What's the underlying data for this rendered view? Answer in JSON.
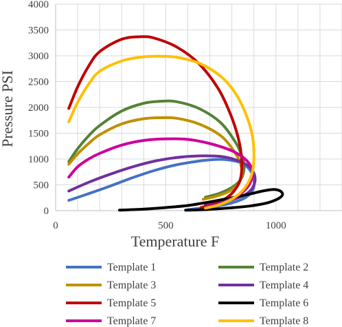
{
  "chart_data": {
    "type": "line",
    "title": "",
    "xlabel": "Temperature F",
    "ylabel": "Pressure PSI",
    "xlim": [
      0,
      1300
    ],
    "ylim": [
      0,
      4000
    ],
    "xticks": [
      0,
      500,
      1000
    ],
    "yticks": [
      0,
      500,
      1000,
      1500,
      2000,
      2500,
      3000,
      3500,
      4000
    ],
    "grid": "both",
    "legend_position": "bottom",
    "series": [
      {
        "name": "Template 1",
        "color": "#4472C4",
        "points": [
          [
            60,
            200
          ],
          [
            150,
            330
          ],
          [
            250,
            480
          ],
          [
            350,
            640
          ],
          [
            450,
            780
          ],
          [
            550,
            890
          ],
          [
            650,
            960
          ],
          [
            720,
            990
          ],
          [
            780,
            985
          ],
          [
            840,
            930
          ],
          [
            880,
            800
          ],
          [
            900,
            600
          ],
          [
            895,
            400
          ],
          [
            860,
            250
          ],
          [
            800,
            150
          ],
          [
            720,
            80
          ],
          [
            600,
            20
          ]
        ]
      },
      {
        "name": "Template 2",
        "color": "#548235",
        "points": [
          [
            60,
            950
          ],
          [
            100,
            1200
          ],
          [
            150,
            1450
          ],
          [
            200,
            1650
          ],
          [
            300,
            1930
          ],
          [
            400,
            2080
          ],
          [
            480,
            2120
          ],
          [
            550,
            2110
          ],
          [
            650,
            1980
          ],
          [
            750,
            1700
          ],
          [
            820,
            1300
          ],
          [
            850,
            1000
          ],
          [
            855,
            800
          ],
          [
            840,
            600
          ],
          [
            800,
            450
          ],
          [
            740,
            330
          ],
          [
            680,
            260
          ]
        ]
      },
      {
        "name": "Template 3",
        "color": "#BF9000",
        "points": [
          [
            60,
            900
          ],
          [
            100,
            1100
          ],
          [
            150,
            1300
          ],
          [
            200,
            1470
          ],
          [
            300,
            1680
          ],
          [
            400,
            1780
          ],
          [
            480,
            1800
          ],
          [
            550,
            1790
          ],
          [
            650,
            1680
          ],
          [
            750,
            1450
          ],
          [
            810,
            1150
          ],
          [
            840,
            900
          ],
          [
            845,
            700
          ],
          [
            830,
            520
          ],
          [
            790,
            380
          ],
          [
            730,
            280
          ],
          [
            670,
            220
          ]
        ]
      },
      {
        "name": "Template 4",
        "color": "#7030A0",
        "points": [
          [
            60,
            380
          ],
          [
            150,
            550
          ],
          [
            250,
            710
          ],
          [
            350,
            850
          ],
          [
            450,
            960
          ],
          [
            550,
            1030
          ],
          [
            650,
            1060
          ],
          [
            750,
            1050
          ],
          [
            820,
            980
          ],
          [
            880,
            850
          ],
          [
            905,
            650
          ],
          [
            895,
            450
          ],
          [
            860,
            310
          ],
          [
            800,
            210
          ],
          [
            740,
            150
          ],
          [
            680,
            110
          ]
        ]
      },
      {
        "name": "Template 5",
        "color": "#C00000",
        "points": [
          [
            60,
            1980
          ],
          [
            100,
            2400
          ],
          [
            150,
            2800
          ],
          [
            200,
            3080
          ],
          [
            300,
            3320
          ],
          [
            390,
            3370
          ],
          [
            450,
            3340
          ],
          [
            550,
            3170
          ],
          [
            650,
            2850
          ],
          [
            740,
            2350
          ],
          [
            800,
            1800
          ],
          [
            835,
            1300
          ],
          [
            845,
            900
          ],
          [
            838,
            600
          ],
          [
            810,
            380
          ],
          [
            770,
            230
          ],
          [
            720,
            130
          ],
          [
            660,
            60
          ]
        ]
      },
      {
        "name": "Template 6",
        "color": "#000000",
        "points": [
          [
            290,
            10
          ],
          [
            400,
            30
          ],
          [
            500,
            60
          ],
          [
            600,
            100
          ],
          [
            700,
            170
          ],
          [
            800,
            250
          ],
          [
            880,
            320
          ],
          [
            940,
            380
          ],
          [
            990,
            410
          ],
          [
            1020,
            380
          ],
          [
            1030,
            310
          ],
          [
            1010,
            230
          ],
          [
            960,
            150
          ],
          [
            880,
            90
          ],
          [
            780,
            50
          ],
          [
            680,
            20
          ],
          [
            590,
            10
          ]
        ]
      },
      {
        "name": "Template 7",
        "color": "#CC0099",
        "points": [
          [
            60,
            650
          ],
          [
            100,
            850
          ],
          [
            150,
            1000
          ],
          [
            200,
            1110
          ],
          [
            300,
            1270
          ],
          [
            400,
            1360
          ],
          [
            500,
            1390
          ],
          [
            600,
            1380
          ],
          [
            700,
            1300
          ],
          [
            800,
            1160
          ],
          [
            860,
            1000
          ],
          [
            890,
            820
          ],
          [
            890,
            620
          ],
          [
            870,
            450
          ],
          [
            830,
            300
          ],
          [
            760,
            160
          ],
          [
            690,
            80
          ]
        ]
      },
      {
        "name": "Template 8",
        "color": "#FFC000",
        "points": [
          [
            60,
            1720
          ],
          [
            100,
            2100
          ],
          [
            150,
            2450
          ],
          [
            200,
            2700
          ],
          [
            300,
            2900
          ],
          [
            400,
            2980
          ],
          [
            480,
            2990
          ],
          [
            550,
            2970
          ],
          [
            650,
            2860
          ],
          [
            750,
            2600
          ],
          [
            820,
            2250
          ],
          [
            870,
            1800
          ],
          [
            895,
            1400
          ],
          [
            900,
            1000
          ],
          [
            890,
            700
          ],
          [
            860,
            450
          ],
          [
            810,
            250
          ],
          [
            740,
            110
          ],
          [
            680,
            50
          ]
        ]
      }
    ]
  }
}
